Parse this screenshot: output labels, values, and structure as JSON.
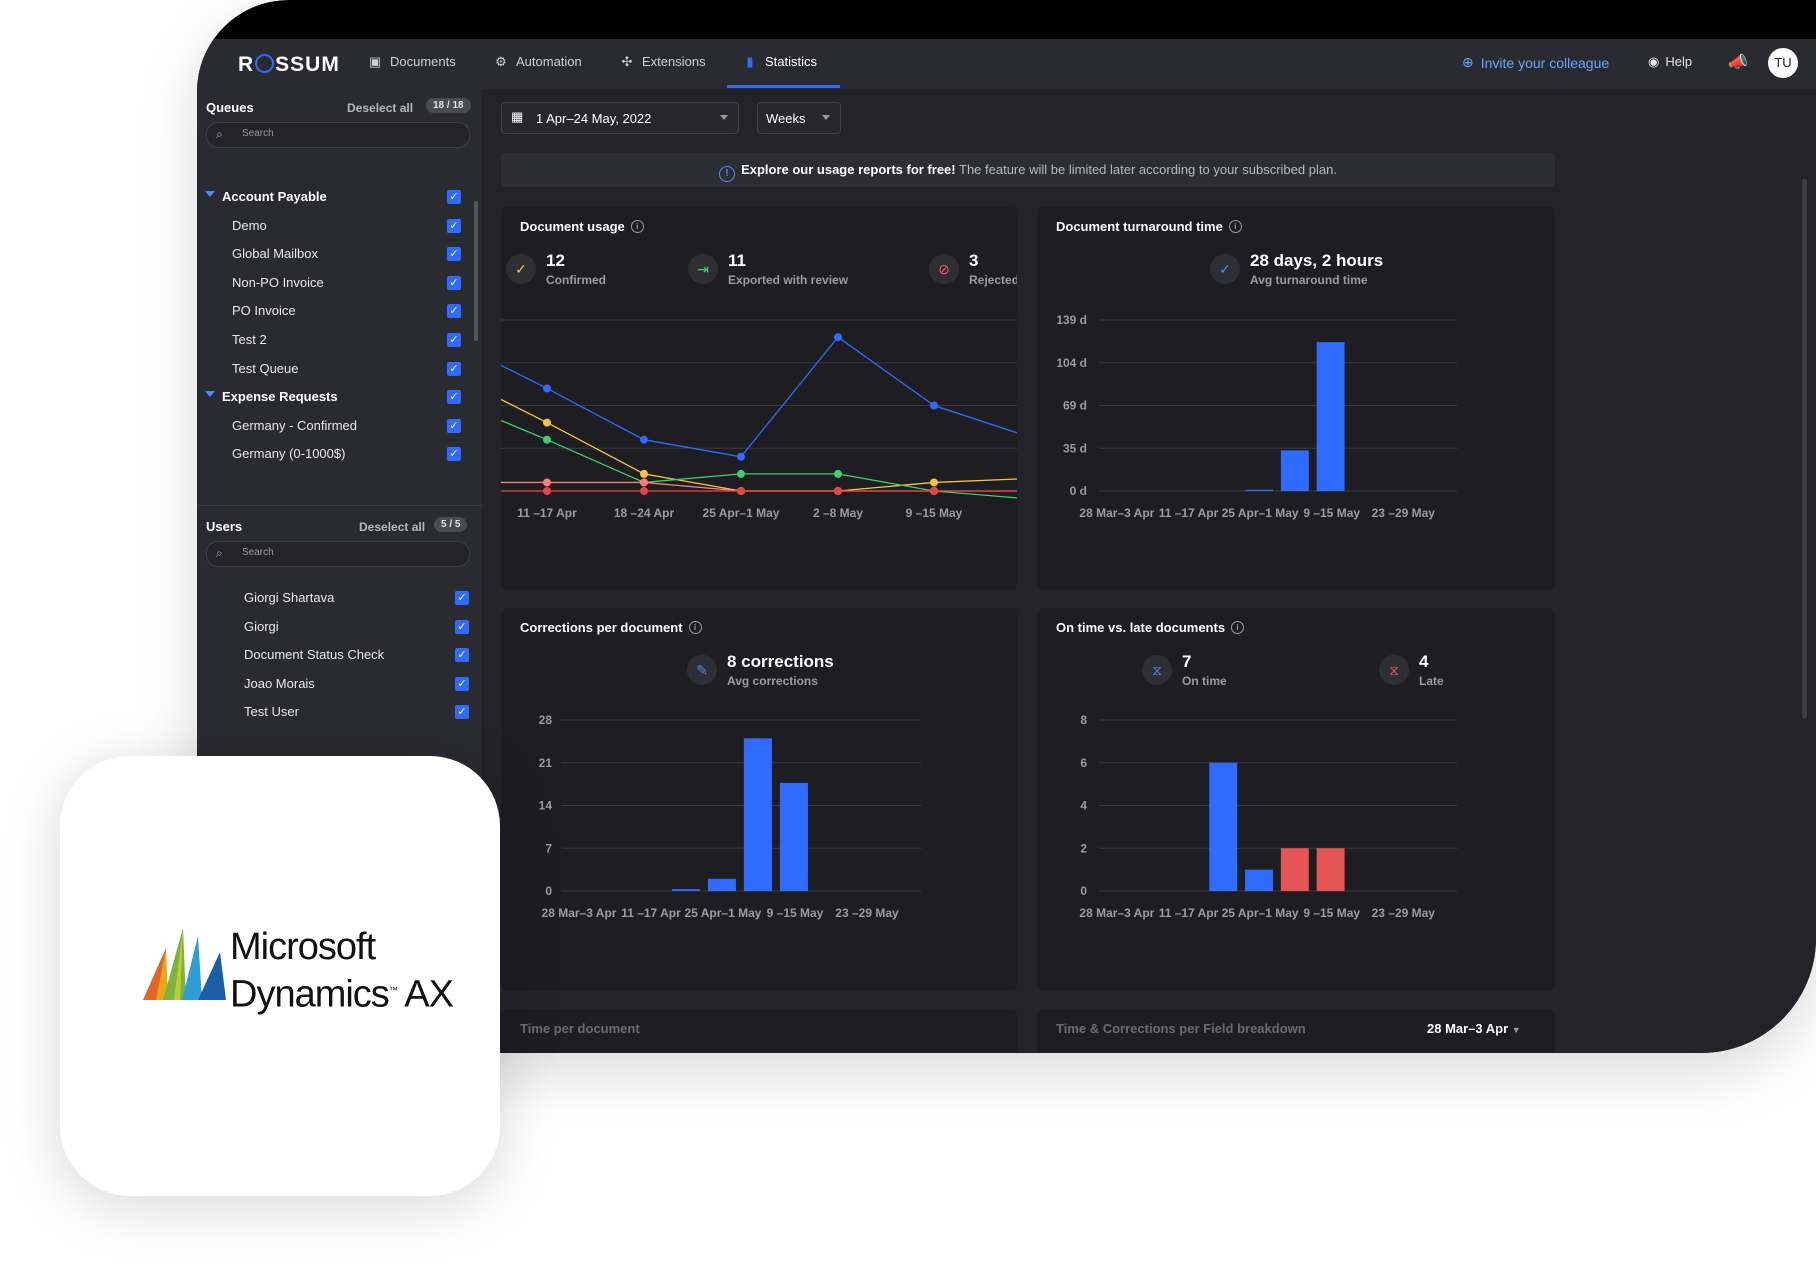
{
  "topbar": {
    "logo_pre": "R",
    "logo_post": "SSUM",
    "nav": [
      {
        "label": "Documents",
        "icon": "folder-icon"
      },
      {
        "label": "Automation",
        "icon": "robot-icon"
      },
      {
        "label": "Extensions",
        "icon": "puzzle-icon"
      },
      {
        "label": "Statistics",
        "icon": "bar-chart-icon"
      }
    ],
    "active_nav": "Statistics",
    "invite_label": "Invite your colleague",
    "help_label": "Help",
    "avatar_initials": "TU"
  },
  "sidebar": {
    "queues": {
      "title": "Queues",
      "deselect_label": "Deselect all",
      "count": "18 / 18",
      "search_placeholder": "Search",
      "rows": [
        {
          "label": "Account Payable",
          "group": true
        },
        {
          "label": "Demo",
          "group": false
        },
        {
          "label": "Global Mailbox",
          "group": false
        },
        {
          "label": "Non-PO Invoice",
          "group": false
        },
        {
          "label": "PO Invoice",
          "group": false
        },
        {
          "label": "Test 2",
          "group": false
        },
        {
          "label": "Test Queue",
          "group": false
        },
        {
          "label": "Expense Requests",
          "group": true
        },
        {
          "label": "Germany - Confirmed",
          "group": false
        },
        {
          "label": "Germany (0-1000$)",
          "group": false
        }
      ]
    },
    "users": {
      "title": "Users",
      "deselect_label": "Deselect all",
      "count": "5 / 5",
      "search_placeholder": "Search",
      "rows": [
        "Giorgi Shartava",
        "Giorgi",
        "Document Status Check",
        "Joao Morais",
        "Test User"
      ]
    }
  },
  "filters": {
    "date_range": "1 Apr–24 May, 2022",
    "granularity": "Weeks"
  },
  "banner": {
    "bold": "Explore our usage reports for free!",
    "text": " The feature will be limited later according to your subscribed plan."
  },
  "cards": {
    "document_usage": {
      "title": "Document usage",
      "metrics": [
        {
          "value": "12",
          "label": "Confirmed",
          "icon": "check-icon",
          "color": "#f5c542"
        },
        {
          "value": "11",
          "label": "Exported with review",
          "icon": "export-icon",
          "color": "#3ecf6e"
        },
        {
          "value": "3",
          "label": "Rejected",
          "icon": "rejected-icon",
          "color": "#ff5a5a"
        }
      ]
    },
    "turnaround": {
      "title": "Document turnaround time",
      "metric_value": "28 days, 2 hours",
      "metric_label": "Avg turnaround time"
    },
    "corrections": {
      "title": "Corrections per document",
      "metric_value": "8 corrections",
      "metric_label": "Avg corrections"
    },
    "ontime": {
      "title": "On time vs. late documents",
      "metrics": [
        {
          "value": "7",
          "label": "On time",
          "color": "#4a8bff"
        },
        {
          "value": "4",
          "label": "Late",
          "color": "#ff5a5a"
        }
      ]
    },
    "time_per_doc": {
      "title": "Time per document"
    },
    "field_breakdown": {
      "title": "Time & Corrections per Field breakdown",
      "period": "28 Mar–3 Apr"
    }
  },
  "promo": {
    "line1": "Microsoft",
    "line2": "Dynamics",
    "line2b": "AX",
    "tm": "™"
  },
  "chart_data": [
    {
      "type": "line",
      "name": "Document usage",
      "categories": [
        "11 –17 Apr",
        "18 –24 Apr",
        "25 Apr–1 May",
        "2 –8 May",
        "9 –15 May"
      ],
      "series": [
        {
          "color": "#2f6bff",
          "values": [
            24,
            12,
            8,
            36,
            20
          ]
        },
        {
          "color": "#f5c542",
          "values": [
            16,
            4,
            0,
            0,
            2
          ]
        },
        {
          "color": "#3ecf6e",
          "values": [
            12,
            2,
            4,
            4,
            0
          ]
        },
        {
          "color": "#ff7a7a",
          "values": [
            2,
            2,
            0,
            0,
            0
          ]
        },
        {
          "color": "#e64545",
          "values": [
            0,
            0,
            0,
            0,
            0
          ]
        }
      ]
    },
    {
      "type": "bar",
      "name": "Document turnaround time",
      "categories": [
        "28 Mar–3 Apr",
        "11 –17 Apr",
        "25 Apr–1 May",
        "9 –15 May",
        "23 –29 May"
      ],
      "x_slots": 10,
      "bars": [
        {
          "slot": 4,
          "value": 1
        },
        {
          "slot": 5,
          "value": 33
        },
        {
          "slot": 6,
          "value": 121
        }
      ],
      "ticks": [
        "0 d",
        "35 d",
        "69 d",
        "104 d",
        "139 d"
      ],
      "ylim": [
        0,
        139
      ]
    },
    {
      "type": "bar",
      "name": "Corrections per document",
      "categories": [
        "28 Mar–3 Apr",
        "11 –17 Apr",
        "25 Apr–1 May",
        "9 –15 May",
        "23 –29 May"
      ],
      "x_slots": 10,
      "bars": [
        {
          "slot": 3,
          "value": 0.3
        },
        {
          "slot": 4,
          "value": 2
        },
        {
          "slot": 5,
          "value": 25
        },
        {
          "slot": 6,
          "value": 17.7
        }
      ],
      "ticks": [
        "0",
        "7",
        "14",
        "21",
        "28"
      ],
      "ylim": [
        0,
        28
      ]
    },
    {
      "type": "bar",
      "name": "On time vs. late documents",
      "categories": [
        "28 Mar–3 Apr",
        "11 –17 Apr",
        "25 Apr–1 May",
        "9 –15 May",
        "23 –29 May"
      ],
      "x_slots": 10,
      "bars": [
        {
          "slot": 3,
          "value": 6,
          "color": "#2f6bff"
        },
        {
          "slot": 4,
          "value": 1,
          "color": "#2f6bff"
        },
        {
          "slot": 5,
          "value": 2,
          "color": "#e65454"
        },
        {
          "slot": 6,
          "value": 2,
          "color": "#e65454"
        }
      ],
      "ticks": [
        "0",
        "2",
        "4",
        "6",
        "8"
      ],
      "ylim": [
        0,
        8
      ]
    }
  ]
}
